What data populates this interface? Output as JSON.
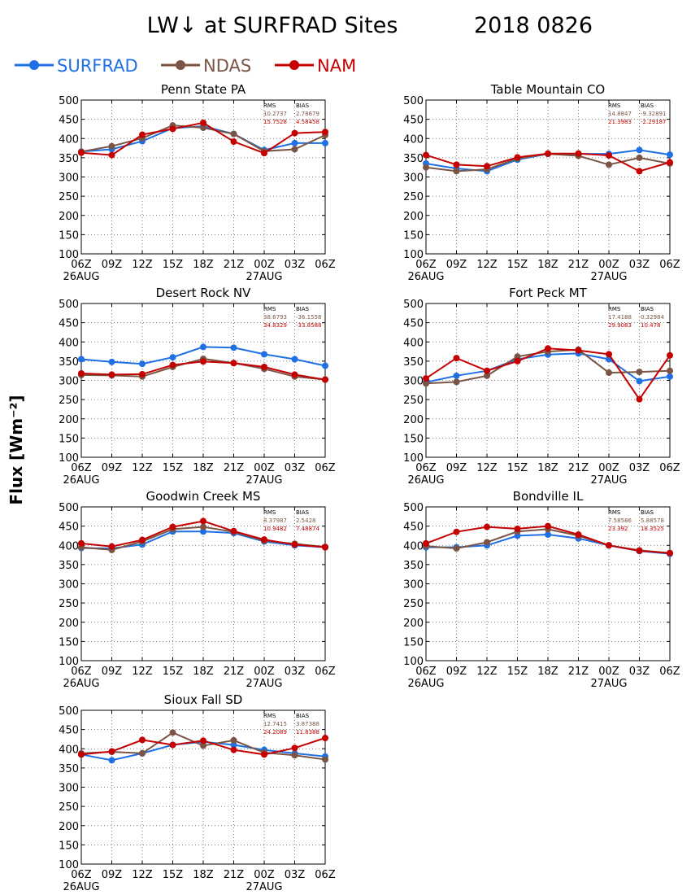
{
  "figure": {
    "title": "LW↓ at SURFRAD Sites",
    "date": "2018 0826",
    "ylabel": "Flux [Wm⁻²]"
  },
  "legend": [
    {
      "name": "SURFRAD",
      "color": "#1f6fe5"
    },
    {
      "name": "NDAS",
      "color": "#7a5545"
    },
    {
      "name": "NAM",
      "color": "#c40000"
    }
  ],
  "stats_headers": {
    "rms": "RMS",
    "bias": "BIAS"
  },
  "chart_data": [
    {
      "type": "line",
      "title": "Penn State PA",
      "categories": [
        "06Z",
        "09Z",
        "12Z",
        "15Z",
        "18Z",
        "21Z",
        "00Z",
        "03Z",
        "06Z"
      ],
      "date_labels": [
        {
          "index": 0,
          "text": "26AUG"
        },
        {
          "index": 6,
          "text": "27AUG"
        }
      ],
      "ylim": [
        100,
        500
      ],
      "yticks": [
        100,
        150,
        200,
        250,
        300,
        350,
        400,
        450,
        500
      ],
      "grid": true,
      "series": [
        {
          "name": "SURFRAD",
          "values": [
            366,
            372,
            393,
            427,
            432,
            412,
            370,
            388,
            388
          ]
        },
        {
          "name": "NDAS",
          "values": [
            366,
            380,
            401,
            434,
            428,
            412,
            367,
            372,
            409
          ]
        },
        {
          "name": "NAM",
          "values": [
            363,
            357,
            410,
            425,
            441,
            392,
            362,
            414,
            417
          ]
        }
      ],
      "stats": {
        "ndas": {
          "rms": "10.2737",
          "bias": "2.78679"
        },
        "nam": {
          "rms": "15.7528",
          "bias": "4.58458"
        }
      }
    },
    {
      "type": "line",
      "title": "Table Mountain CO",
      "categories": [
        "06Z",
        "09Z",
        "12Z",
        "15Z",
        "18Z",
        "21Z",
        "00Z",
        "03Z",
        "06Z"
      ],
      "date_labels": [
        {
          "index": 0,
          "text": "26AUG"
        },
        {
          "index": 6,
          "text": "27AUG"
        }
      ],
      "ylim": [
        100,
        500
      ],
      "yticks": [
        100,
        150,
        200,
        250,
        300,
        350,
        400,
        450,
        500
      ],
      "grid": true,
      "series": [
        {
          "name": "SURFRAD",
          "values": [
            335,
            322,
            315,
            345,
            360,
            360,
            360,
            370,
            358
          ]
        },
        {
          "name": "NDAS",
          "values": [
            325,
            315,
            320,
            348,
            360,
            355,
            332,
            350,
            335
          ]
        },
        {
          "name": "NAM",
          "values": [
            357,
            332,
            328,
            351,
            361,
            361,
            356,
            315,
            338
          ]
        }
      ],
      "stats": {
        "ndas": {
          "rms": "14.8847",
          "bias": "-9.32891"
        },
        "nam": {
          "rms": "21.3983",
          "bias": "-2.29187"
        }
      }
    },
    {
      "type": "line",
      "title": "Desert Rock NV",
      "categories": [
        "06Z",
        "09Z",
        "12Z",
        "15Z",
        "18Z",
        "21Z",
        "00Z",
        "03Z",
        "06Z"
      ],
      "date_labels": [
        {
          "index": 0,
          "text": "26AUG"
        },
        {
          "index": 6,
          "text": "27AUG"
        }
      ],
      "ylim": [
        100,
        500
      ],
      "yticks": [
        100,
        150,
        200,
        250,
        300,
        350,
        400,
        450,
        500
      ],
      "grid": true,
      "series": [
        {
          "name": "SURFRAD",
          "values": [
            355,
            348,
            343,
            360,
            387,
            385,
            368,
            355,
            338
          ]
        },
        {
          "name": "NDAS",
          "values": [
            314,
            313,
            310,
            335,
            356,
            345,
            330,
            310,
            302
          ]
        },
        {
          "name": "NAM",
          "values": [
            318,
            315,
            316,
            340,
            349,
            345,
            335,
            315,
            302
          ]
        }
      ],
      "stats": {
        "ndas": {
          "rms": "38.6793",
          "bias": "-36.1558"
        },
        "nam": {
          "rms": "34.8329",
          "bias": "-33.8588"
        }
      }
    },
    {
      "type": "line",
      "title": "Fort Peck MT",
      "categories": [
        "06Z",
        "09Z",
        "12Z",
        "15Z",
        "18Z",
        "21Z",
        "00Z",
        "03Z",
        "06Z"
      ],
      "date_labels": [
        {
          "index": 0,
          "text": "26AUG"
        },
        {
          "index": 6,
          "text": "27AUG"
        }
      ],
      "ylim": [
        100,
        500
      ],
      "yticks": [
        100,
        150,
        200,
        250,
        300,
        350,
        400,
        450,
        500
      ],
      "grid": true,
      "series": [
        {
          "name": "SURFRAD",
          "values": [
            295,
            312,
            325,
            355,
            367,
            370,
            355,
            298,
            310
          ]
        },
        {
          "name": "NDAS",
          "values": [
            292,
            296,
            312,
            362,
            375,
            380,
            320,
            322,
            325
          ]
        },
        {
          "name": "NAM",
          "values": [
            305,
            358,
            325,
            350,
            383,
            378,
            368,
            251,
            365
          ]
        }
      ],
      "stats": {
        "ndas": {
          "rms": "17.4188",
          "bias": "0.32984"
        },
        "nam": {
          "rms": "29.9083",
          "bias": "10.478"
        }
      }
    },
    {
      "type": "line",
      "title": "Goodwin Creek MS",
      "categories": [
        "06Z",
        "09Z",
        "12Z",
        "15Z",
        "18Z",
        "21Z",
        "00Z",
        "03Z",
        "06Z"
      ],
      "date_labels": [
        {
          "index": 0,
          "text": "26AUG"
        },
        {
          "index": 6,
          "text": "27AUG"
        }
      ],
      "ylim": [
        100,
        500
      ],
      "yticks": [
        100,
        150,
        200,
        250,
        300,
        350,
        400,
        450,
        500
      ],
      "grid": true,
      "series": [
        {
          "name": "SURFRAD",
          "values": [
            393,
            392,
            402,
            436,
            436,
            432,
            410,
            400,
            395
          ]
        },
        {
          "name": "NDAS",
          "values": [
            395,
            388,
            410,
            442,
            448,
            435,
            412,
            404,
            396
          ]
        },
        {
          "name": "NAM",
          "values": [
            405,
            397,
            414,
            448,
            463,
            437,
            415,
            402,
            395
          ]
        }
      ],
      "stats": {
        "ndas": {
          "rms": "8.37987",
          "bias": "2.5428"
        },
        "nam": {
          "rms": "10.9482",
          "bias": "7.48874"
        }
      }
    },
    {
      "type": "line",
      "title": "Bondville IL",
      "categories": [
        "06Z",
        "09Z",
        "12Z",
        "15Z",
        "18Z",
        "21Z",
        "00Z",
        "03Z",
        "06Z"
      ],
      "date_labels": [
        {
          "index": 0,
          "text": "26AUG"
        },
        {
          "index": 6,
          "text": "27AUG"
        }
      ],
      "ylim": [
        100,
        500
      ],
      "yticks": [
        100,
        150,
        200,
        250,
        300,
        350,
        400,
        450,
        500
      ],
      "grid": true,
      "series": [
        {
          "name": "SURFRAD",
          "values": [
            395,
            395,
            400,
            425,
            428,
            418,
            400,
            385,
            378
          ]
        },
        {
          "name": "NDAS",
          "values": [
            398,
            392,
            408,
            436,
            442,
            425,
            400,
            387,
            380
          ]
        },
        {
          "name": "NAM",
          "values": [
            405,
            435,
            448,
            443,
            450,
            428,
            400,
            386,
            380
          ]
        }
      ],
      "stats": {
        "ndas": {
          "rms": "7.58586",
          "bias": "5.88578"
        },
        "nam": {
          "rms": "23.392",
          "bias": "18.3525"
        }
      }
    },
    {
      "type": "line",
      "title": "Sioux Fall SD",
      "categories": [
        "06Z",
        "09Z",
        "12Z",
        "15Z",
        "18Z",
        "21Z",
        "00Z",
        "03Z",
        "06Z"
      ],
      "date_labels": [
        {
          "index": 0,
          "text": "26AUG"
        },
        {
          "index": 6,
          "text": "27AUG"
        }
      ],
      "ylim": [
        100,
        500
      ],
      "yticks": [
        100,
        150,
        200,
        250,
        300,
        350,
        400,
        450,
        500
      ],
      "grid": true,
      "series": [
        {
          "name": "SURFRAD",
          "values": [
            385,
            370,
            388,
            410,
            418,
            410,
            397,
            388,
            380
          ]
        },
        {
          "name": "NDAS",
          "values": [
            388,
            392,
            388,
            442,
            408,
            422,
            390,
            383,
            372
          ]
        },
        {
          "name": "NAM",
          "values": [
            385,
            393,
            423,
            410,
            421,
            397,
            385,
            402,
            428
          ]
        }
      ],
      "stats": {
        "ndas": {
          "rms": "12.7415",
          "bias": "3.87388"
        },
        "nam": {
          "rms": "24.2089",
          "bias": "11.8388"
        }
      }
    }
  ]
}
